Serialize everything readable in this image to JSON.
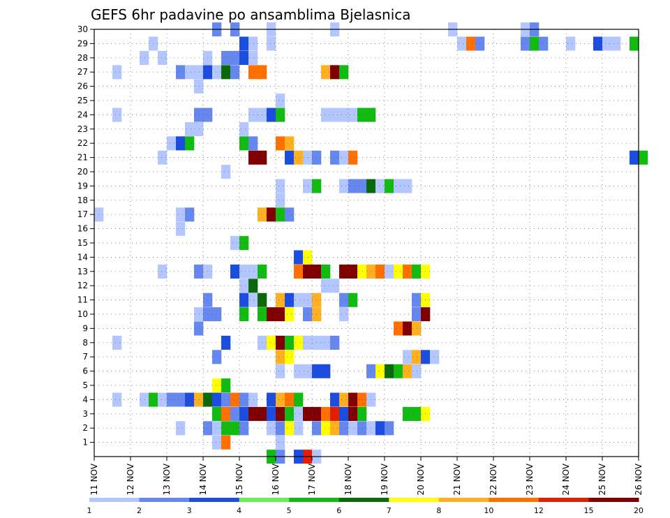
{
  "chart_data": {
    "type": "heatmap",
    "title": "GEFS 6hr padavine po ansamblima Bjelasnica",
    "x_ticks": [
      "11 NOV",
      "12 NOV",
      "13 NOV",
      "14 NOV",
      "15 NOV",
      "16 NOV",
      "17 NOV",
      "18 NOV",
      "19 NOV",
      "20 NOV",
      "21 NOV",
      "22 NOV",
      "23 NOV",
      "24 NOV",
      "25 NOV",
      "26 NOV"
    ],
    "y_ticks": [
      "1",
      "2",
      "3",
      "4",
      "5",
      "6",
      "7",
      "8",
      "9",
      "10",
      "11",
      "12",
      "13",
      "14",
      "15",
      "16",
      "17",
      "18",
      "19",
      "20",
      "21",
      "22",
      "23",
      "24",
      "25",
      "26",
      "27",
      "28",
      "29",
      "30"
    ],
    "x_unit": "6hr step from 11 NOV 00Z",
    "ylim": [
      0,
      30
    ],
    "xlim": [
      0,
      60
    ],
    "grid": true,
    "colorbar": {
      "labels": [
        "1",
        "2",
        "3",
        "4",
        "5",
        "6",
        "7",
        "8",
        "10",
        "12",
        "15",
        "20"
      ],
      "colors": [
        "#b3c6ff",
        "#6688ee",
        "#1a4de0",
        "#66ee55",
        "#11bb11",
        "#0a6a0a",
        "#ffff00",
        "#ffb020",
        "#ff7000",
        "#e02000",
        "#800000"
      ]
    },
    "cells": [
      {
        "member": 30,
        "cells": [
          [
            13,
            2
          ],
          [
            15,
            2
          ],
          [
            19,
            1
          ],
          [
            26,
            1
          ],
          [
            39,
            1
          ],
          [
            47,
            1
          ],
          [
            48,
            2
          ]
        ]
      },
      {
        "member": 29,
        "cells": [
          [
            6,
            1
          ],
          [
            16,
            3
          ],
          [
            17,
            1
          ],
          [
            19,
            1
          ],
          [
            40,
            1
          ],
          [
            41,
            10
          ],
          [
            42,
            2
          ],
          [
            47,
            2
          ],
          [
            48,
            5
          ],
          [
            49,
            2
          ],
          [
            52,
            1
          ],
          [
            55,
            3
          ],
          [
            56,
            1
          ],
          [
            57,
            1
          ],
          [
            59,
            5
          ]
        ]
      },
      {
        "member": 28,
        "cells": [
          [
            5,
            1
          ],
          [
            7,
            1
          ],
          [
            12,
            1
          ],
          [
            14,
            2
          ],
          [
            15,
            2
          ],
          [
            16,
            3
          ],
          [
            17,
            1
          ]
        ]
      },
      {
        "member": 27,
        "cells": [
          [
            2,
            1
          ],
          [
            9,
            2
          ],
          [
            10,
            1
          ],
          [
            11,
            1
          ],
          [
            12,
            3
          ],
          [
            13,
            1
          ],
          [
            14,
            6
          ],
          [
            15,
            2
          ],
          [
            17,
            10
          ],
          [
            18,
            10
          ],
          [
            25,
            8
          ],
          [
            26,
            15
          ],
          [
            27,
            5
          ]
        ]
      },
      {
        "member": 26,
        "cells": [
          [
            11,
            1
          ]
        ]
      },
      {
        "member": 25,
        "cells": [
          [
            20,
            1
          ]
        ]
      },
      {
        "member": 24,
        "cells": [
          [
            2,
            1
          ],
          [
            11,
            2
          ],
          [
            12,
            2
          ],
          [
            17,
            1
          ],
          [
            18,
            1
          ],
          [
            19,
            3
          ],
          [
            20,
            5
          ],
          [
            25,
            1
          ],
          [
            26,
            1
          ],
          [
            27,
            1
          ],
          [
            28,
            1
          ],
          [
            29,
            5
          ],
          [
            30,
            5
          ]
        ]
      },
      {
        "member": 23,
        "cells": [
          [
            10,
            1
          ],
          [
            11,
            1
          ],
          [
            16,
            1
          ]
        ]
      },
      {
        "member": 22,
        "cells": [
          [
            8,
            1
          ],
          [
            9,
            3
          ],
          [
            10,
            5
          ],
          [
            16,
            5
          ],
          [
            17,
            2
          ],
          [
            20,
            10
          ],
          [
            21,
            8
          ]
        ]
      },
      {
        "member": 21,
        "cells": [
          [
            7,
            1
          ],
          [
            17,
            20
          ],
          [
            18,
            20
          ],
          [
            21,
            3
          ],
          [
            22,
            8
          ],
          [
            23,
            1
          ],
          [
            24,
            2
          ],
          [
            26,
            2
          ],
          [
            27,
            1
          ],
          [
            28,
            10
          ],
          [
            59,
            3
          ],
          [
            60,
            5
          ]
        ]
      },
      {
        "member": 20,
        "cells": [
          [
            14,
            1
          ]
        ]
      },
      {
        "member": 19,
        "cells": [
          [
            20,
            1
          ],
          [
            23,
            1
          ],
          [
            24,
            5
          ],
          [
            27,
            1
          ],
          [
            28,
            2
          ],
          [
            29,
            2
          ],
          [
            30,
            6
          ],
          [
            31,
            1
          ],
          [
            32,
            5
          ],
          [
            33,
            1
          ],
          [
            34,
            1
          ]
        ]
      },
      {
        "member": 18,
        "cells": [
          [
            20,
            1
          ]
        ]
      },
      {
        "member": 17,
        "cells": [
          [
            0,
            1
          ],
          [
            9,
            1
          ],
          [
            10,
            2
          ],
          [
            18,
            8
          ],
          [
            19,
            15
          ],
          [
            20,
            5
          ],
          [
            21,
            2
          ]
        ]
      },
      {
        "member": 16,
        "cells": [
          [
            9,
            1
          ]
        ]
      },
      {
        "member": 15,
        "cells": [
          [
            15,
            1
          ],
          [
            16,
            5
          ]
        ]
      },
      {
        "member": 14,
        "cells": [
          [
            22,
            3
          ],
          [
            23,
            7
          ]
        ]
      },
      {
        "member": 13,
        "cells": [
          [
            7,
            1
          ],
          [
            11,
            2
          ],
          [
            12,
            1
          ],
          [
            15,
            3
          ],
          [
            16,
            1
          ],
          [
            17,
            1
          ],
          [
            18,
            5
          ],
          [
            22,
            10
          ],
          [
            23,
            20
          ],
          [
            24,
            15
          ],
          [
            25,
            5
          ],
          [
            27,
            15
          ],
          [
            28,
            15
          ],
          [
            29,
            7
          ],
          [
            30,
            8
          ],
          [
            31,
            10
          ],
          [
            32,
            1
          ],
          [
            33,
            7
          ],
          [
            34,
            10
          ],
          [
            35,
            5
          ],
          [
            36,
            7
          ]
        ]
      },
      {
        "member": 12,
        "cells": [
          [
            16,
            1
          ],
          [
            17,
            6
          ],
          [
            25,
            1
          ],
          [
            26,
            1
          ]
        ]
      },
      {
        "member": 11,
        "cells": [
          [
            12,
            2
          ],
          [
            16,
            3
          ],
          [
            17,
            1
          ],
          [
            18,
            6
          ],
          [
            20,
            8
          ],
          [
            21,
            3
          ],
          [
            22,
            1
          ],
          [
            23,
            1
          ],
          [
            24,
            8
          ],
          [
            27,
            2
          ],
          [
            28,
            5
          ],
          [
            35,
            2
          ],
          [
            36,
            7
          ]
        ]
      },
      {
        "member": 10,
        "cells": [
          [
            11,
            1
          ],
          [
            12,
            2
          ],
          [
            13,
            2
          ],
          [
            16,
            5
          ],
          [
            18,
            5
          ],
          [
            19,
            20
          ],
          [
            20,
            15
          ],
          [
            21,
            7
          ],
          [
            23,
            2
          ],
          [
            24,
            8
          ],
          [
            27,
            1
          ],
          [
            35,
            2
          ],
          [
            36,
            20
          ]
        ]
      },
      {
        "member": 9,
        "cells": [
          [
            11,
            2
          ],
          [
            33,
            10
          ],
          [
            34,
            15
          ],
          [
            35,
            8
          ]
        ]
      },
      {
        "member": 8,
        "cells": [
          [
            2,
            1
          ],
          [
            14,
            3
          ],
          [
            18,
            1
          ],
          [
            19,
            7
          ],
          [
            20,
            15
          ],
          [
            21,
            5
          ],
          [
            22,
            7
          ],
          [
            23,
            1
          ],
          [
            24,
            1
          ],
          [
            25,
            1
          ],
          [
            26,
            2
          ]
        ]
      },
      {
        "member": 7,
        "cells": [
          [
            13,
            2
          ],
          [
            20,
            8
          ],
          [
            21,
            7
          ],
          [
            34,
            1
          ],
          [
            35,
            8
          ],
          [
            36,
            3
          ],
          [
            37,
            1
          ]
        ]
      },
      {
        "member": 6,
        "cells": [
          [
            20,
            1
          ],
          [
            22,
            1
          ],
          [
            23,
            1
          ],
          [
            24,
            3
          ],
          [
            25,
            3
          ],
          [
            30,
            2
          ],
          [
            31,
            7
          ],
          [
            32,
            6
          ],
          [
            33,
            5
          ],
          [
            34,
            8
          ],
          [
            35,
            1
          ]
        ]
      },
      {
        "member": 5,
        "cells": [
          [
            13,
            7
          ],
          [
            14,
            5
          ]
        ]
      },
      {
        "member": 4,
        "cells": [
          [
            2,
            1
          ],
          [
            5,
            1
          ],
          [
            6,
            5
          ],
          [
            7,
            1
          ],
          [
            8,
            2
          ],
          [
            9,
            2
          ],
          [
            10,
            3
          ],
          [
            11,
            8
          ],
          [
            12,
            6
          ],
          [
            13,
            3
          ],
          [
            14,
            2
          ],
          [
            15,
            10
          ],
          [
            16,
            2
          ],
          [
            17,
            1
          ],
          [
            19,
            3
          ],
          [
            20,
            8
          ],
          [
            21,
            10
          ],
          [
            22,
            5
          ],
          [
            26,
            3
          ],
          [
            27,
            8
          ],
          [
            28,
            15
          ],
          [
            29,
            10
          ],
          [
            30,
            1
          ]
        ]
      },
      {
        "member": 3,
        "cells": [
          [
            13,
            5
          ],
          [
            14,
            10
          ],
          [
            15,
            2
          ],
          [
            16,
            3
          ],
          [
            17,
            15
          ],
          [
            18,
            20
          ],
          [
            19,
            3
          ],
          [
            20,
            15
          ],
          [
            21,
            5
          ],
          [
            22,
            1
          ],
          [
            23,
            15
          ],
          [
            24,
            15
          ],
          [
            25,
            10
          ],
          [
            26,
            12
          ],
          [
            27,
            3
          ],
          [
            28,
            15
          ],
          [
            29,
            5
          ],
          [
            34,
            5
          ],
          [
            35,
            5
          ],
          [
            36,
            7
          ]
        ]
      },
      {
        "member": 2,
        "cells": [
          [
            9,
            1
          ],
          [
            12,
            2
          ],
          [
            13,
            1
          ],
          [
            14,
            5
          ],
          [
            15,
            5
          ],
          [
            16,
            2
          ],
          [
            19,
            1
          ],
          [
            20,
            2
          ],
          [
            21,
            7
          ],
          [
            22,
            1
          ],
          [
            24,
            2
          ],
          [
            25,
            7
          ],
          [
            26,
            8
          ],
          [
            27,
            2
          ],
          [
            28,
            1
          ],
          [
            29,
            2
          ],
          [
            30,
            1
          ],
          [
            31,
            3
          ],
          [
            32,
            2
          ]
        ]
      },
      {
        "member": 1,
        "cells": [
          [
            13,
            1
          ],
          [
            14,
            10
          ],
          [
            20,
            1
          ]
        ]
      },
      {
        "member": 0,
        "cells": [
          [
            19,
            5
          ],
          [
            20,
            2
          ],
          [
            22,
            3
          ],
          [
            23,
            12
          ],
          [
            24,
            1
          ]
        ]
      }
    ]
  }
}
